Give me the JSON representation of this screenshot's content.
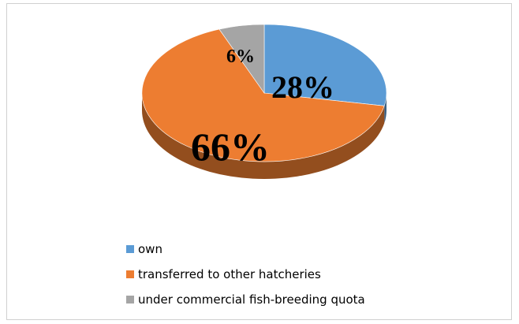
{
  "chart_data": {
    "type": "pie",
    "style": "3d",
    "title": "",
    "slices": [
      {
        "label": "own",
        "value": 28,
        "display": "28%",
        "color": "#5B9BD5"
      },
      {
        "label": "transferred to other hatcheries",
        "value": 66,
        "display": "66%",
        "color": "#ED7D31"
      },
      {
        "label": "under commercial fish-breeding quota",
        "value": 6,
        "display": "6%",
        "color": "#A5A5A5"
      }
    ],
    "legend_position": "bottom"
  }
}
